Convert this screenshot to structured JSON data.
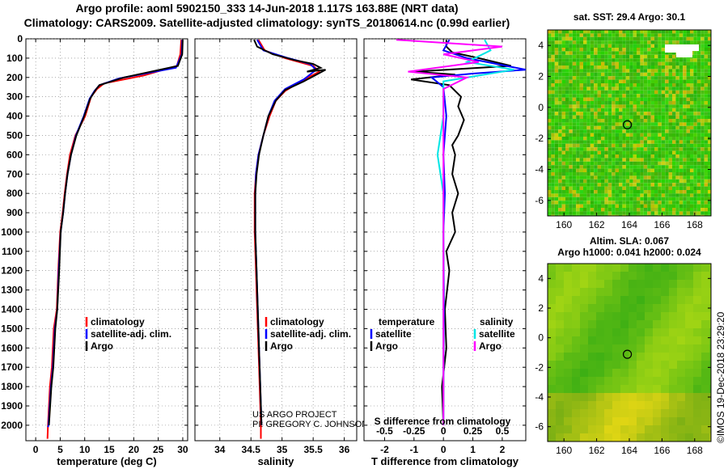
{
  "header": {
    "line1": "Argo profile: aoml 5902150_333 14-Jun-2018 1.117S 163.88E (NRT data)",
    "line2": "Climatology: CARS2009. Satellite-adjusted climatology: synTS_20180614.nc (0.99d earlier)"
  },
  "colors": {
    "climatology": "#ff0000",
    "satellite": "#0000ff",
    "argo": "#000000",
    "sat_salinity": "#00e5e5",
    "argo_salinity": "#ff00ff"
  },
  "chart_data": [
    {
      "type": "line",
      "id": "temperature",
      "xlabel": "temperature (deg C)",
      "ylabel": "",
      "xlim": [
        -2,
        31
      ],
      "ylim": [
        2080,
        0
      ],
      "xticks": [
        "0",
        "5",
        "10",
        "15",
        "20",
        "25",
        "30"
      ],
      "xtick_values": [
        0,
        5,
        10,
        15,
        20,
        25,
        30
      ],
      "yticks": [
        "0",
        "100",
        "200",
        "300",
        "400",
        "500",
        "600",
        "700",
        "800",
        "900",
        "1000",
        "1100",
        "1200",
        "1300",
        "1400",
        "1500",
        "1600",
        "1700",
        "1800",
        "1900",
        "2000"
      ],
      "ytick_values": [
        0,
        100,
        200,
        300,
        400,
        500,
        600,
        700,
        800,
        900,
        1000,
        1100,
        1200,
        1300,
        1400,
        1500,
        1600,
        1700,
        1800,
        1900,
        2000
      ],
      "legend": [
        "climatology",
        "satellite-adj. clim.",
        "Argo"
      ],
      "series": [
        {
          "name": "climatology",
          "color": "#ff0000",
          "points": [
            [
              29.7,
              5
            ],
            [
              29.5,
              80
            ],
            [
              28.8,
              140
            ],
            [
              22,
              190
            ],
            [
              14,
              230
            ],
            [
              12.5,
              260
            ],
            [
              11.3,
              300
            ],
            [
              10.1,
              400
            ],
            [
              8.1,
              500
            ],
            [
              7.0,
              600
            ],
            [
              6.4,
              700
            ],
            [
              5.9,
              800
            ],
            [
              5.5,
              900
            ],
            [
              5.0,
              1000
            ],
            [
              4.6,
              1200
            ],
            [
              4.3,
              1400
            ],
            [
              3.7,
              1500
            ],
            [
              3.3,
              1700
            ],
            [
              2.9,
              1800
            ],
            [
              2.5,
              2000
            ],
            [
              2.4,
              2070
            ]
          ]
        },
        {
          "name": "satellite-adj. clim.",
          "color": "#0000ff",
          "points": [
            [
              29.9,
              5
            ],
            [
              29.8,
              80
            ],
            [
              28.6,
              150
            ],
            [
              17,
              205
            ],
            [
              13,
              240
            ],
            [
              12.0,
              270
            ],
            [
              11.0,
              310
            ],
            [
              9.8,
              400
            ],
            [
              8.2,
              500
            ],
            [
              7.2,
              600
            ],
            [
              6.5,
              700
            ],
            [
              6.0,
              800
            ],
            [
              5.6,
              900
            ],
            [
              5.1,
              1000
            ],
            [
              4.7,
              1200
            ],
            [
              4.4,
              1400
            ],
            [
              3.9,
              1500
            ],
            [
              3.5,
              1700
            ],
            [
              3.1,
              1800
            ],
            [
              2.6,
              2000
            ],
            [
              2.5,
              2010
            ]
          ]
        },
        {
          "name": "Argo",
          "color": "#000000",
          "points": [
            [
              30.0,
              5
            ],
            [
              29.9,
              80
            ],
            [
              29.0,
              140
            ],
            [
              18,
              200
            ],
            [
              13,
              240
            ],
            [
              12.2,
              265
            ],
            [
              11.1,
              310
            ],
            [
              9.9,
              400
            ],
            [
              8.3,
              500
            ],
            [
              7.2,
              600
            ],
            [
              6.5,
              700
            ],
            [
              6.0,
              800
            ],
            [
              5.6,
              900
            ],
            [
              5.1,
              1000
            ],
            [
              4.8,
              1200
            ],
            [
              4.4,
              1400
            ],
            [
              4.0,
              1500
            ],
            [
              3.6,
              1700
            ],
            [
              3.2,
              1800
            ],
            [
              2.7,
              2000
            ]
          ]
        }
      ]
    },
    {
      "type": "line",
      "id": "salinity",
      "xlabel": "salinity",
      "xlim": [
        33.6,
        36.2
      ],
      "ylim": [
        2080,
        0
      ],
      "xticks": [
        "34",
        "34.5",
        "35",
        "35.5",
        "36"
      ],
      "xtick_values": [
        34,
        34.5,
        35,
        35.5,
        36
      ],
      "legend": [
        "climatology",
        "satellite-adj. clim.",
        "Argo"
      ],
      "annotation": [
        "US ARGO PROJECT",
        "PI: GREGORY C. JOHNSON"
      ],
      "series": [
        {
          "name": "climatology",
          "color": "#ff0000",
          "points": [
            [
              34.62,
              5
            ],
            [
              34.72,
              60
            ],
            [
              35.05,
              100
            ],
            [
              35.5,
              140
            ],
            [
              35.6,
              170
            ],
            [
              35.3,
              220
            ],
            [
              35.05,
              270
            ],
            [
              34.9,
              320
            ],
            [
              34.8,
              400
            ],
            [
              34.7,
              500
            ],
            [
              34.62,
              600
            ],
            [
              34.58,
              700
            ],
            [
              34.56,
              800
            ],
            [
              34.56,
              1000
            ],
            [
              34.58,
              1200
            ],
            [
              34.6,
              1400
            ],
            [
              34.62,
              1600
            ],
            [
              34.64,
              1800
            ],
            [
              34.66,
              2000
            ],
            [
              34.66,
              2070
            ]
          ]
        },
        {
          "name": "satellite-adj. clim.",
          "color": "#0000ff",
          "points": [
            [
              34.6,
              5
            ],
            [
              34.7,
              60
            ],
            [
              35.1,
              100
            ],
            [
              35.45,
              130
            ],
            [
              35.55,
              160
            ],
            [
              35.35,
              210
            ],
            [
              35.05,
              260
            ],
            [
              34.88,
              320
            ],
            [
              34.78,
              400
            ],
            [
              34.7,
              500
            ],
            [
              34.62,
              600
            ],
            [
              34.58,
              700
            ],
            [
              34.57,
              800
            ],
            [
              34.57,
              1000
            ],
            [
              34.59,
              1200
            ],
            [
              34.61,
              1400
            ],
            [
              34.63,
              1600
            ],
            [
              34.65,
              1800
            ],
            [
              34.67,
              2000
            ]
          ]
        },
        {
          "name": "Argo",
          "color": "#000000",
          "points": [
            [
              34.55,
              5
            ],
            [
              34.6,
              40
            ],
            [
              34.85,
              80
            ],
            [
              35.2,
              110
            ],
            [
              35.5,
              130
            ],
            [
              35.62,
              150
            ],
            [
              35.4,
              170
            ],
            [
              35.7,
              160
            ],
            [
              35.35,
              220
            ],
            [
              35.05,
              265
            ],
            [
              34.9,
              320
            ],
            [
              34.78,
              400
            ],
            [
              34.7,
              500
            ],
            [
              34.63,
              600
            ],
            [
              34.59,
              700
            ],
            [
              34.57,
              800
            ],
            [
              34.57,
              1000
            ],
            [
              34.59,
              1200
            ],
            [
              34.61,
              1400
            ],
            [
              34.63,
              1600
            ],
            [
              34.65,
              1800
            ],
            [
              34.67,
              2000
            ]
          ]
        }
      ]
    },
    {
      "type": "line",
      "id": "difference",
      "xlabel": "T difference from climatology",
      "xlabel2": "S difference from climatology",
      "xlim": [
        -2.7,
        2.8
      ],
      "ylim": [
        2080,
        0
      ],
      "xticks": [
        "-2",
        "-1",
        "0",
        "1",
        "2"
      ],
      "xtick_values": [
        -2,
        -1,
        0,
        1,
        2
      ],
      "xticks2": [
        "-0.5",
        "-0.25",
        "0",
        "0.25",
        "0.5"
      ],
      "xtick2_values": [
        -0.5,
        -0.25,
        0,
        0.25,
        0.5
      ],
      "legend_left_title": "temperature",
      "legend_right_title": "salinity",
      "legend_left": [
        "satellite",
        "Argo"
      ],
      "legend_right": [
        "satellite",
        "Argo"
      ],
      "series": [
        {
          "name": "T Argo",
          "color": "#000000",
          "points": [
            [
              0.1,
              5
            ],
            [
              0.1,
              40
            ],
            [
              0.3,
              70
            ],
            [
              1.2,
              100
            ],
            [
              2.3,
              140
            ],
            [
              -1.0,
              170
            ],
            [
              0.4,
              185
            ],
            [
              -1.1,
              210
            ],
            [
              0.2,
              240
            ],
            [
              0.6,
              300
            ],
            [
              0.5,
              350
            ],
            [
              0.7,
              420
            ],
            [
              0.5,
              500
            ],
            [
              0.3,
              550
            ],
            [
              0.4,
              600
            ],
            [
              0.3,
              700
            ],
            [
              0.5,
              800
            ],
            [
              0.3,
              900
            ],
            [
              0.4,
              1000
            ],
            [
              0.1,
              1100
            ],
            [
              0.2,
              1200
            ],
            [
              0.05,
              1400
            ],
            [
              0.1,
              1600
            ],
            [
              -0.05,
              1800
            ],
            [
              0.0,
              2000
            ]
          ]
        },
        {
          "name": "T satellite",
          "color": "#0000ff",
          "points": [
            [
              0.2,
              5
            ],
            [
              0.0,
              60
            ],
            [
              0.8,
              100
            ],
            [
              2.8,
              160
            ],
            [
              1.0,
              180
            ],
            [
              -0.4,
              200
            ],
            [
              0.0,
              250
            ],
            [
              0.1,
              400
            ],
            [
              0.0,
              600
            ],
            [
              0.05,
              800
            ],
            [
              0.0,
              1000
            ],
            [
              0.02,
              1400
            ],
            [
              0.0,
              1800
            ],
            [
              0.0,
              2000
            ]
          ]
        },
        {
          "name": "S satellite",
          "color": "#00e5e5",
          "points": [
            [
              0.35,
              5
            ],
            [
              0.4,
              60
            ],
            [
              0.2,
              120
            ],
            [
              0.6,
              160
            ],
            [
              0.0,
              220
            ],
            [
              0.0,
              400
            ],
            [
              -0.05,
              600
            ],
            [
              0.0,
              800
            ],
            [
              0.0,
              1200
            ],
            [
              0.0,
              1600
            ],
            [
              0.0,
              2000
            ]
          ]
        },
        {
          "name": "S Argo",
          "color": "#ff00ff",
          "points": [
            [
              -0.4,
              5
            ],
            [
              0.5,
              40
            ],
            [
              0.0,
              80
            ],
            [
              0.3,
              120
            ],
            [
              -0.3,
              170
            ],
            [
              0.2,
              200
            ],
            [
              0.0,
              260
            ],
            [
              0.0,
              400
            ],
            [
              0.0,
              800
            ],
            [
              0.0,
              1200
            ],
            [
              0.0,
              1600
            ],
            [
              0.0,
              2000
            ]
          ]
        }
      ]
    },
    {
      "type": "heatmap",
      "id": "sst_map",
      "title": "sat. SST: 29.4 Argo: 30.1",
      "xlim": [
        159,
        169
      ],
      "ylim": [
        -7,
        5
      ],
      "xticks": [
        "160",
        "162",
        "164",
        "166",
        "168"
      ],
      "xtick_values": [
        160,
        162,
        164,
        166,
        168
      ],
      "yticks": [
        "4",
        "2",
        "0",
        "-2",
        "-4",
        "-6"
      ],
      "ytick_values": [
        4,
        2,
        0,
        -2,
        -4,
        -6
      ],
      "marker": [
        163.88,
        -1.117
      ]
    },
    {
      "type": "heatmap",
      "id": "sla_map",
      "title": "Altim. SLA: 0.067",
      "subtitle": "Argo h1000: 0.041 h2000: 0.024",
      "xlim": [
        159,
        169
      ],
      "ylim": [
        -7,
        5
      ],
      "xticks": [
        "160",
        "162",
        "164",
        "166",
        "168"
      ],
      "xtick_values": [
        160,
        162,
        164,
        166,
        168
      ],
      "yticks": [
        "4",
        "2",
        "0",
        "-2",
        "-4",
        "-6"
      ],
      "ytick_values": [
        4,
        2,
        0,
        -2,
        -4,
        -6
      ],
      "marker": [
        163.88,
        -1.117
      ]
    }
  ],
  "credit": "©IMOS 19-Dec-2018 23:29:20"
}
